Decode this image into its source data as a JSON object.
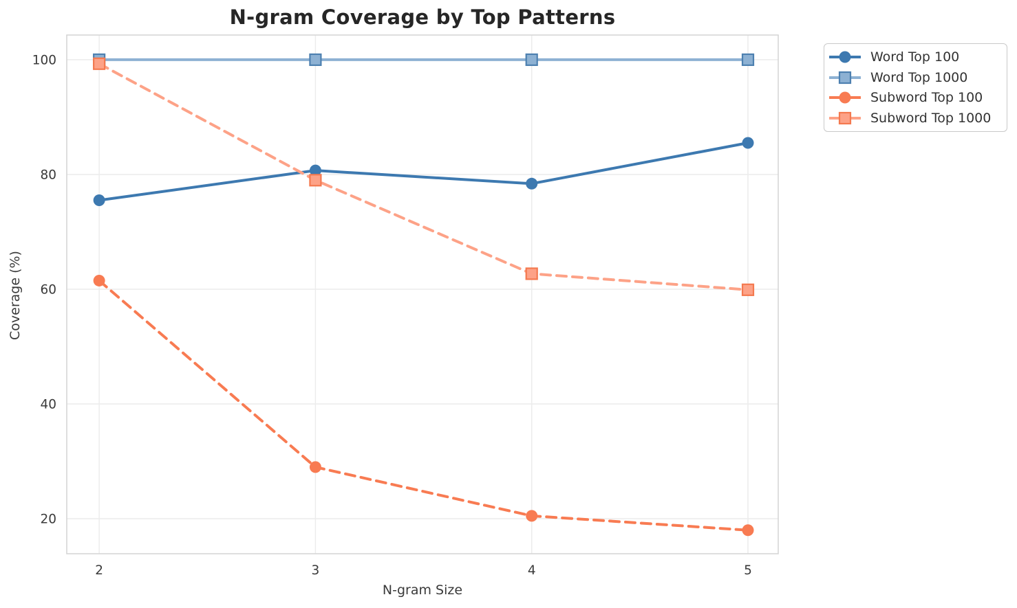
{
  "chart_data": {
    "type": "line",
    "title": "N-gram Coverage by Top Patterns",
    "xlabel": "N-gram Size",
    "ylabel": "Coverage (%)",
    "x": [
      2,
      3,
      4,
      5
    ],
    "xtick_labels": [
      "2",
      "3",
      "4",
      "5"
    ],
    "yticks": [
      20,
      40,
      60,
      80,
      100
    ],
    "ytick_labels": [
      "20",
      "40",
      "60",
      "80",
      "100"
    ],
    "xlim": [
      1.85,
      5.14
    ],
    "ylim": [
      13.9,
      104.3
    ],
    "grid": true,
    "legend_position": "upper-right-outside",
    "series": [
      {
        "name": "Word Top 100",
        "values": [
          75.5,
          80.7,
          78.4,
          85.5
        ],
        "color": "#3d79b0",
        "edge": "#3d79b0",
        "line": "solid",
        "marker": "circle"
      },
      {
        "name": "Word Top 1000",
        "values": [
          100,
          100,
          100,
          100
        ],
        "color": "#8db1d3",
        "edge": "#4d80b0",
        "line": "solid",
        "marker": "square"
      },
      {
        "name": "Subword Top 100",
        "values": [
          61.5,
          29.0,
          20.5,
          18.0
        ],
        "color": "#f87b52",
        "edge": "#f87b52",
        "line": "dashed",
        "marker": "circle"
      },
      {
        "name": "Subword Top 1000",
        "values": [
          99.3,
          79.0,
          62.7,
          59.9
        ],
        "color": "#fda287",
        "edge": "#f4794f",
        "line": "dashed",
        "marker": "square"
      }
    ],
    "colors": {
      "grid": "#ececec",
      "spine": "#d4d4d4",
      "tick_text": "#3a3a3a",
      "title_text": "#262626"
    }
  }
}
